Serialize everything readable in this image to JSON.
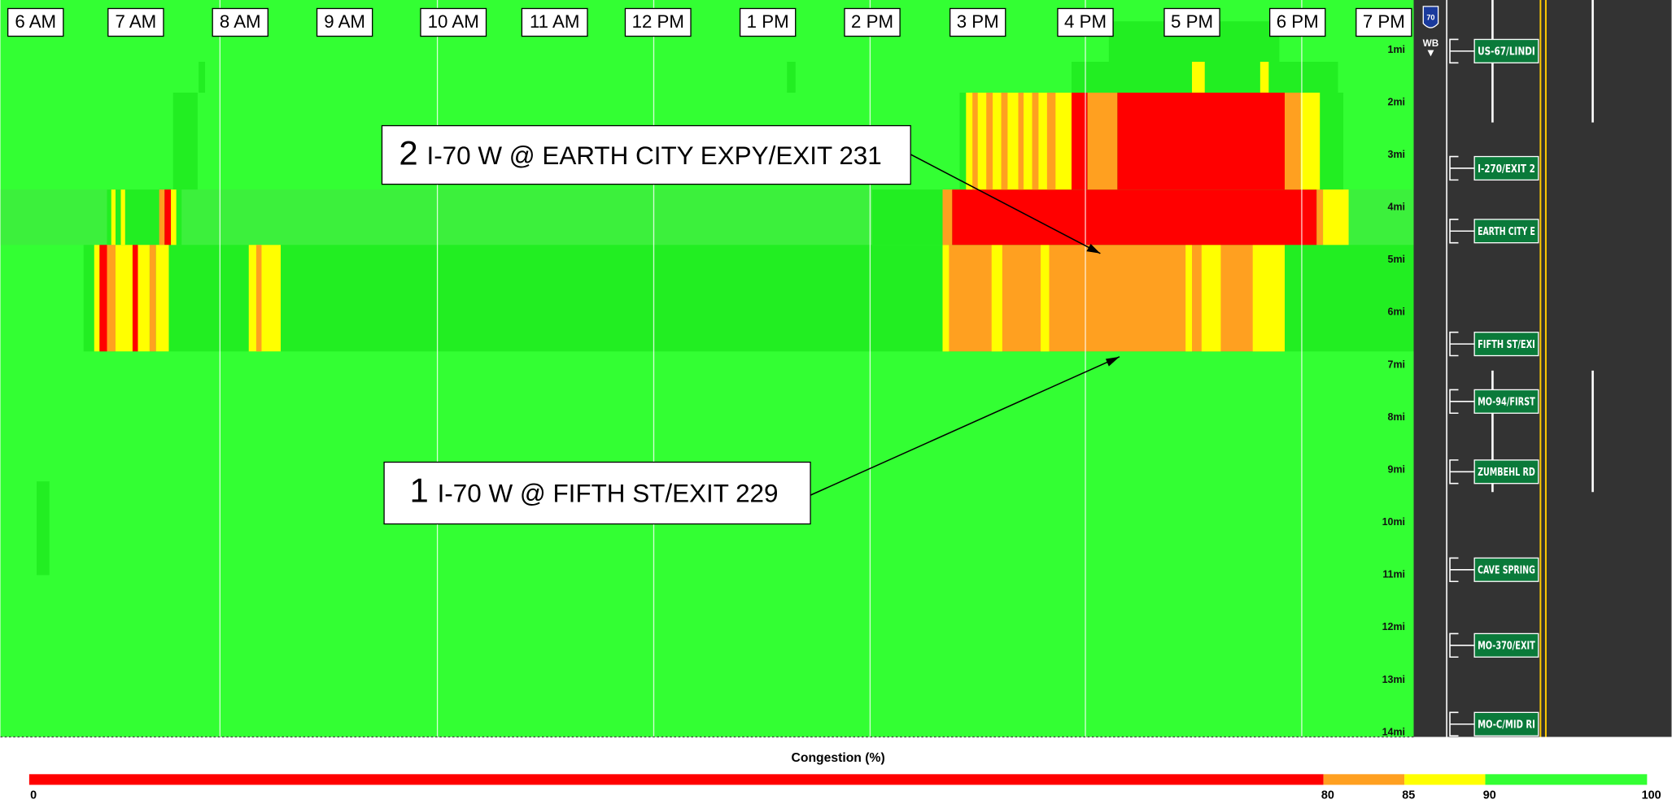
{
  "time_labels": [
    "6 AM",
    "7 AM",
    "8 AM",
    "9 AM",
    "10 AM",
    "11 AM",
    "12 PM",
    "1 PM",
    "2 PM",
    "3 PM",
    "4 PM",
    "5 PM",
    "6 PM",
    "7 PM"
  ],
  "mile_labels": [
    "1mi",
    "2mi",
    "3mi",
    "4mi",
    "5mi",
    "6mi",
    "7mi",
    "8mi",
    "9mi",
    "10mi",
    "11mi",
    "12mi",
    "13mi",
    "14mi"
  ],
  "callouts": [
    {
      "number": "2",
      "text": "I-70 W @ EARTH CITY EXPY/EXIT 231"
    },
    {
      "number": "1",
      "text": "I-70 W @ FIFTH ST/EXIT 229"
    }
  ],
  "panel": {
    "shield": "70",
    "direction": "WB",
    "exits": [
      "US-67/LINDI",
      "I-270/EXIT 2",
      "EARTH CITY E",
      "FIFTH ST/EXI",
      "MO-94/FIRST",
      "ZUMBEHL RD",
      "CAVE SPRING",
      "MO-370/EXIT",
      "MO-C/MID RI"
    ]
  },
  "legend": {
    "title": "Congestion (%)",
    "ticks": [
      0,
      80,
      85,
      90,
      100
    ],
    "colors": [
      "#ff0000",
      "#ffa020",
      "#ffff00",
      "#33ff33"
    ]
  }
}
